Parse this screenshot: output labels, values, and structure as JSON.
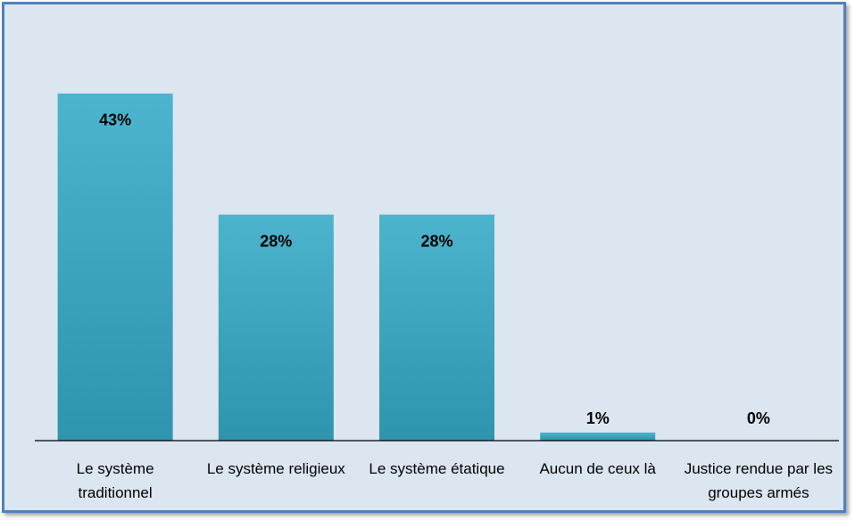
{
  "chart_data": {
    "type": "bar",
    "categories": [
      "Le système traditionnel",
      "Le système religieux",
      "Le système étatique",
      "Aucun de ceux là",
      "Justice rendue par les groupes armés"
    ],
    "values": [
      43,
      28,
      28,
      1,
      0
    ],
    "value_labels": [
      "43%",
      "28%",
      "28%",
      "1%",
      "0%"
    ],
    "color": "#3ea6c1",
    "ylim": [
      0,
      50
    ]
  }
}
